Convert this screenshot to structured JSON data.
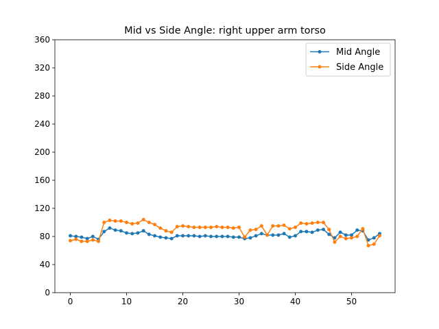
{
  "chart_data": {
    "type": "line",
    "title": "Mid vs Side Angle: right upper arm torso",
    "xlabel": "",
    "ylabel": "",
    "xlim": [
      -2.75,
      57.75
    ],
    "ylim": [
      0,
      360
    ],
    "x_ticks": [
      0,
      10,
      20,
      30,
      40,
      50
    ],
    "y_ticks": [
      0,
      40,
      80,
      120,
      160,
      200,
      240,
      280,
      320,
      360
    ],
    "grid": false,
    "legend_position": "top-right",
    "x": [
      0,
      1,
      2,
      3,
      4,
      5,
      6,
      7,
      8,
      9,
      10,
      11,
      12,
      13,
      14,
      15,
      16,
      17,
      18,
      19,
      20,
      21,
      22,
      23,
      24,
      25,
      26,
      27,
      28,
      29,
      30,
      31,
      32,
      33,
      34,
      35,
      36,
      37,
      38,
      39,
      40,
      41,
      42,
      43,
      44,
      45,
      46,
      47,
      48,
      49,
      50,
      51,
      52,
      53,
      54,
      55
    ],
    "series": [
      {
        "name": "Mid Angle",
        "color": "#1f77b4",
        "values": [
          81,
          80,
          79,
          77,
          80,
          76,
          87,
          92,
          89,
          88,
          85,
          84,
          85,
          88,
          83,
          81,
          79,
          78,
          77,
          81,
          81,
          81,
          81,
          80,
          81,
          80,
          80,
          80,
          80,
          79,
          79,
          77,
          78,
          81,
          84,
          82,
          82,
          82,
          84,
          79,
          81,
          87,
          87,
          86,
          89,
          90,
          83,
          78,
          86,
          82,
          82,
          89,
          88,
          75,
          78,
          84
        ]
      },
      {
        "name": "Side Angle",
        "color": "#ff7f0e",
        "values": [
          74,
          76,
          73,
          73,
          75,
          73,
          100,
          103,
          102,
          102,
          100,
          98,
          99,
          104,
          100,
          97,
          92,
          88,
          86,
          94,
          95,
          94,
          93,
          93,
          93,
          93,
          94,
          93,
          93,
          92,
          93,
          79,
          89,
          90,
          95,
          82,
          95,
          95,
          96,
          91,
          93,
          99,
          98,
          99,
          100,
          100,
          90,
          72,
          80,
          77,
          78,
          80,
          91,
          67,
          69,
          81
        ]
      }
    ]
  }
}
